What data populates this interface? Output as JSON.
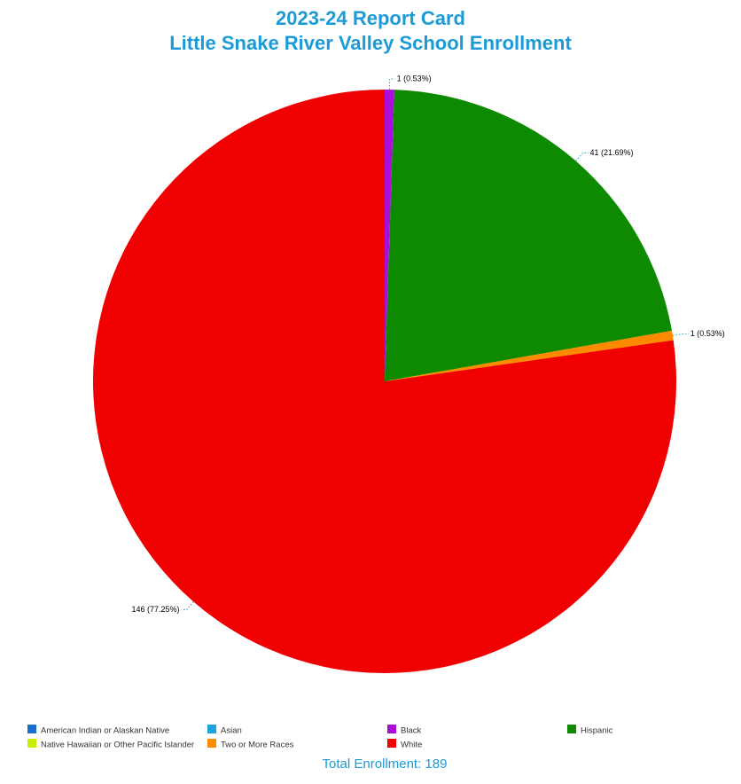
{
  "chart_data": {
    "type": "pie",
    "title": [
      "2023-24 Report Card",
      "Little Snake River Valley School Enrollment"
    ],
    "categories": [
      "American Indian or Alaskan Native",
      "Asian",
      "Black",
      "Hispanic",
      "Native Hawaiian or Other Pacific Islander",
      "Two or More Races",
      "White"
    ],
    "values": [
      0,
      0,
      1,
      41,
      0,
      1,
      146
    ],
    "value_labels": [
      null,
      null,
      "1 (0.53%)",
      "41 (21.69%)",
      null,
      "1 (0.53%)",
      "146 (77.25%)"
    ],
    "colors": [
      "#1a6fcc",
      "#1aa3e0",
      "#a90fd9",
      "#0d8a00",
      "#c6f000",
      "#ff8a00",
      "#f00000"
    ],
    "footer": "Total Enrollment: 189"
  }
}
